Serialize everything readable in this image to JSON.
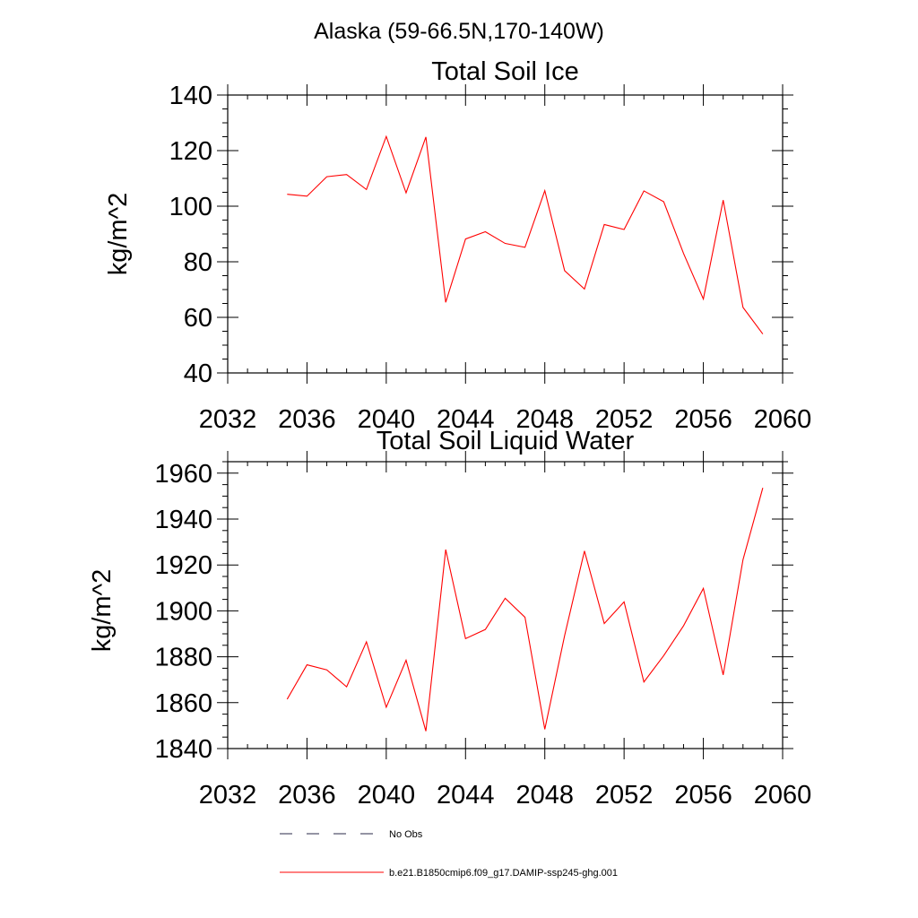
{
  "figure": {
    "title": "Alaska (59-66.5N,170-140W)"
  },
  "chart_data": [
    {
      "type": "line",
      "title": "Total Soil Ice",
      "xlabel": "",
      "ylabel": "kg/m^2",
      "xlim": [
        2032,
        2060
      ],
      "ylim": [
        40,
        140
      ],
      "xticks": [
        2032,
        2036,
        2040,
        2044,
        2048,
        2052,
        2056,
        2060
      ],
      "yticks": [
        40,
        60,
        80,
        100,
        120,
        140
      ],
      "grid": false,
      "series": [
        {
          "color": "#ff0000",
          "x": [
            2035,
            2036,
            2037,
            2038,
            2039,
            2040,
            2041,
            2042,
            2043,
            2044,
            2045,
            2046,
            2047,
            2048,
            2049,
            2050,
            2051,
            2052,
            2053,
            2054,
            2055,
            2056,
            2057,
            2058,
            2059
          ],
          "values": [
            104.3,
            103.6,
            110.6,
            111.4,
            106.0,
            125.1,
            104.8,
            124.9,
            65.4,
            88.2,
            90.8,
            86.6,
            85.2,
            105.6,
            76.8,
            70.2,
            93.4,
            91.6,
            105.5,
            101.6,
            83.0,
            66.6,
            102.2,
            63.6,
            54.0
          ]
        }
      ]
    },
    {
      "type": "line",
      "title": "Total Soil Liquid Water",
      "xlabel": "",
      "ylabel": "kg/m^2",
      "xlim": [
        2032,
        2060
      ],
      "ylim": [
        1840,
        1965
      ],
      "xticks": [
        2032,
        2036,
        2040,
        2044,
        2048,
        2052,
        2056,
        2060
      ],
      "yticks": [
        1840,
        1860,
        1880,
        1900,
        1920,
        1940,
        1960
      ],
      "grid": false,
      "series": [
        {
          "color": "#ff0000",
          "x": [
            2035,
            2036,
            2037,
            2038,
            2039,
            2040,
            2041,
            2042,
            2043,
            2044,
            2045,
            2046,
            2047,
            2048,
            2049,
            2050,
            2051,
            2052,
            2053,
            2054,
            2055,
            2056,
            2057,
            2058,
            2059
          ],
          "values": [
            1861.5,
            1876.5,
            1874.3,
            1866.9,
            1886.5,
            1858.0,
            1878.5,
            1847.6,
            1926.7,
            1887.9,
            1891.9,
            1905.5,
            1897.2,
            1848.4,
            1889.2,
            1926.1,
            1894.5,
            1903.9,
            1869.0,
            1880.5,
            1893.5,
            1909.8,
            1872.1,
            1922.3,
            1953.6
          ]
        }
      ]
    }
  ],
  "legend": {
    "placement": "bottom",
    "items": [
      {
        "label": "No Obs",
        "color": "#2a2a4a",
        "style": "dashed"
      },
      {
        "label": "b.e21.B1850cmip6.f09_g17.DAMIP-ssp245-ghg.001",
        "color": "#ff0000",
        "style": "solid"
      }
    ]
  }
}
